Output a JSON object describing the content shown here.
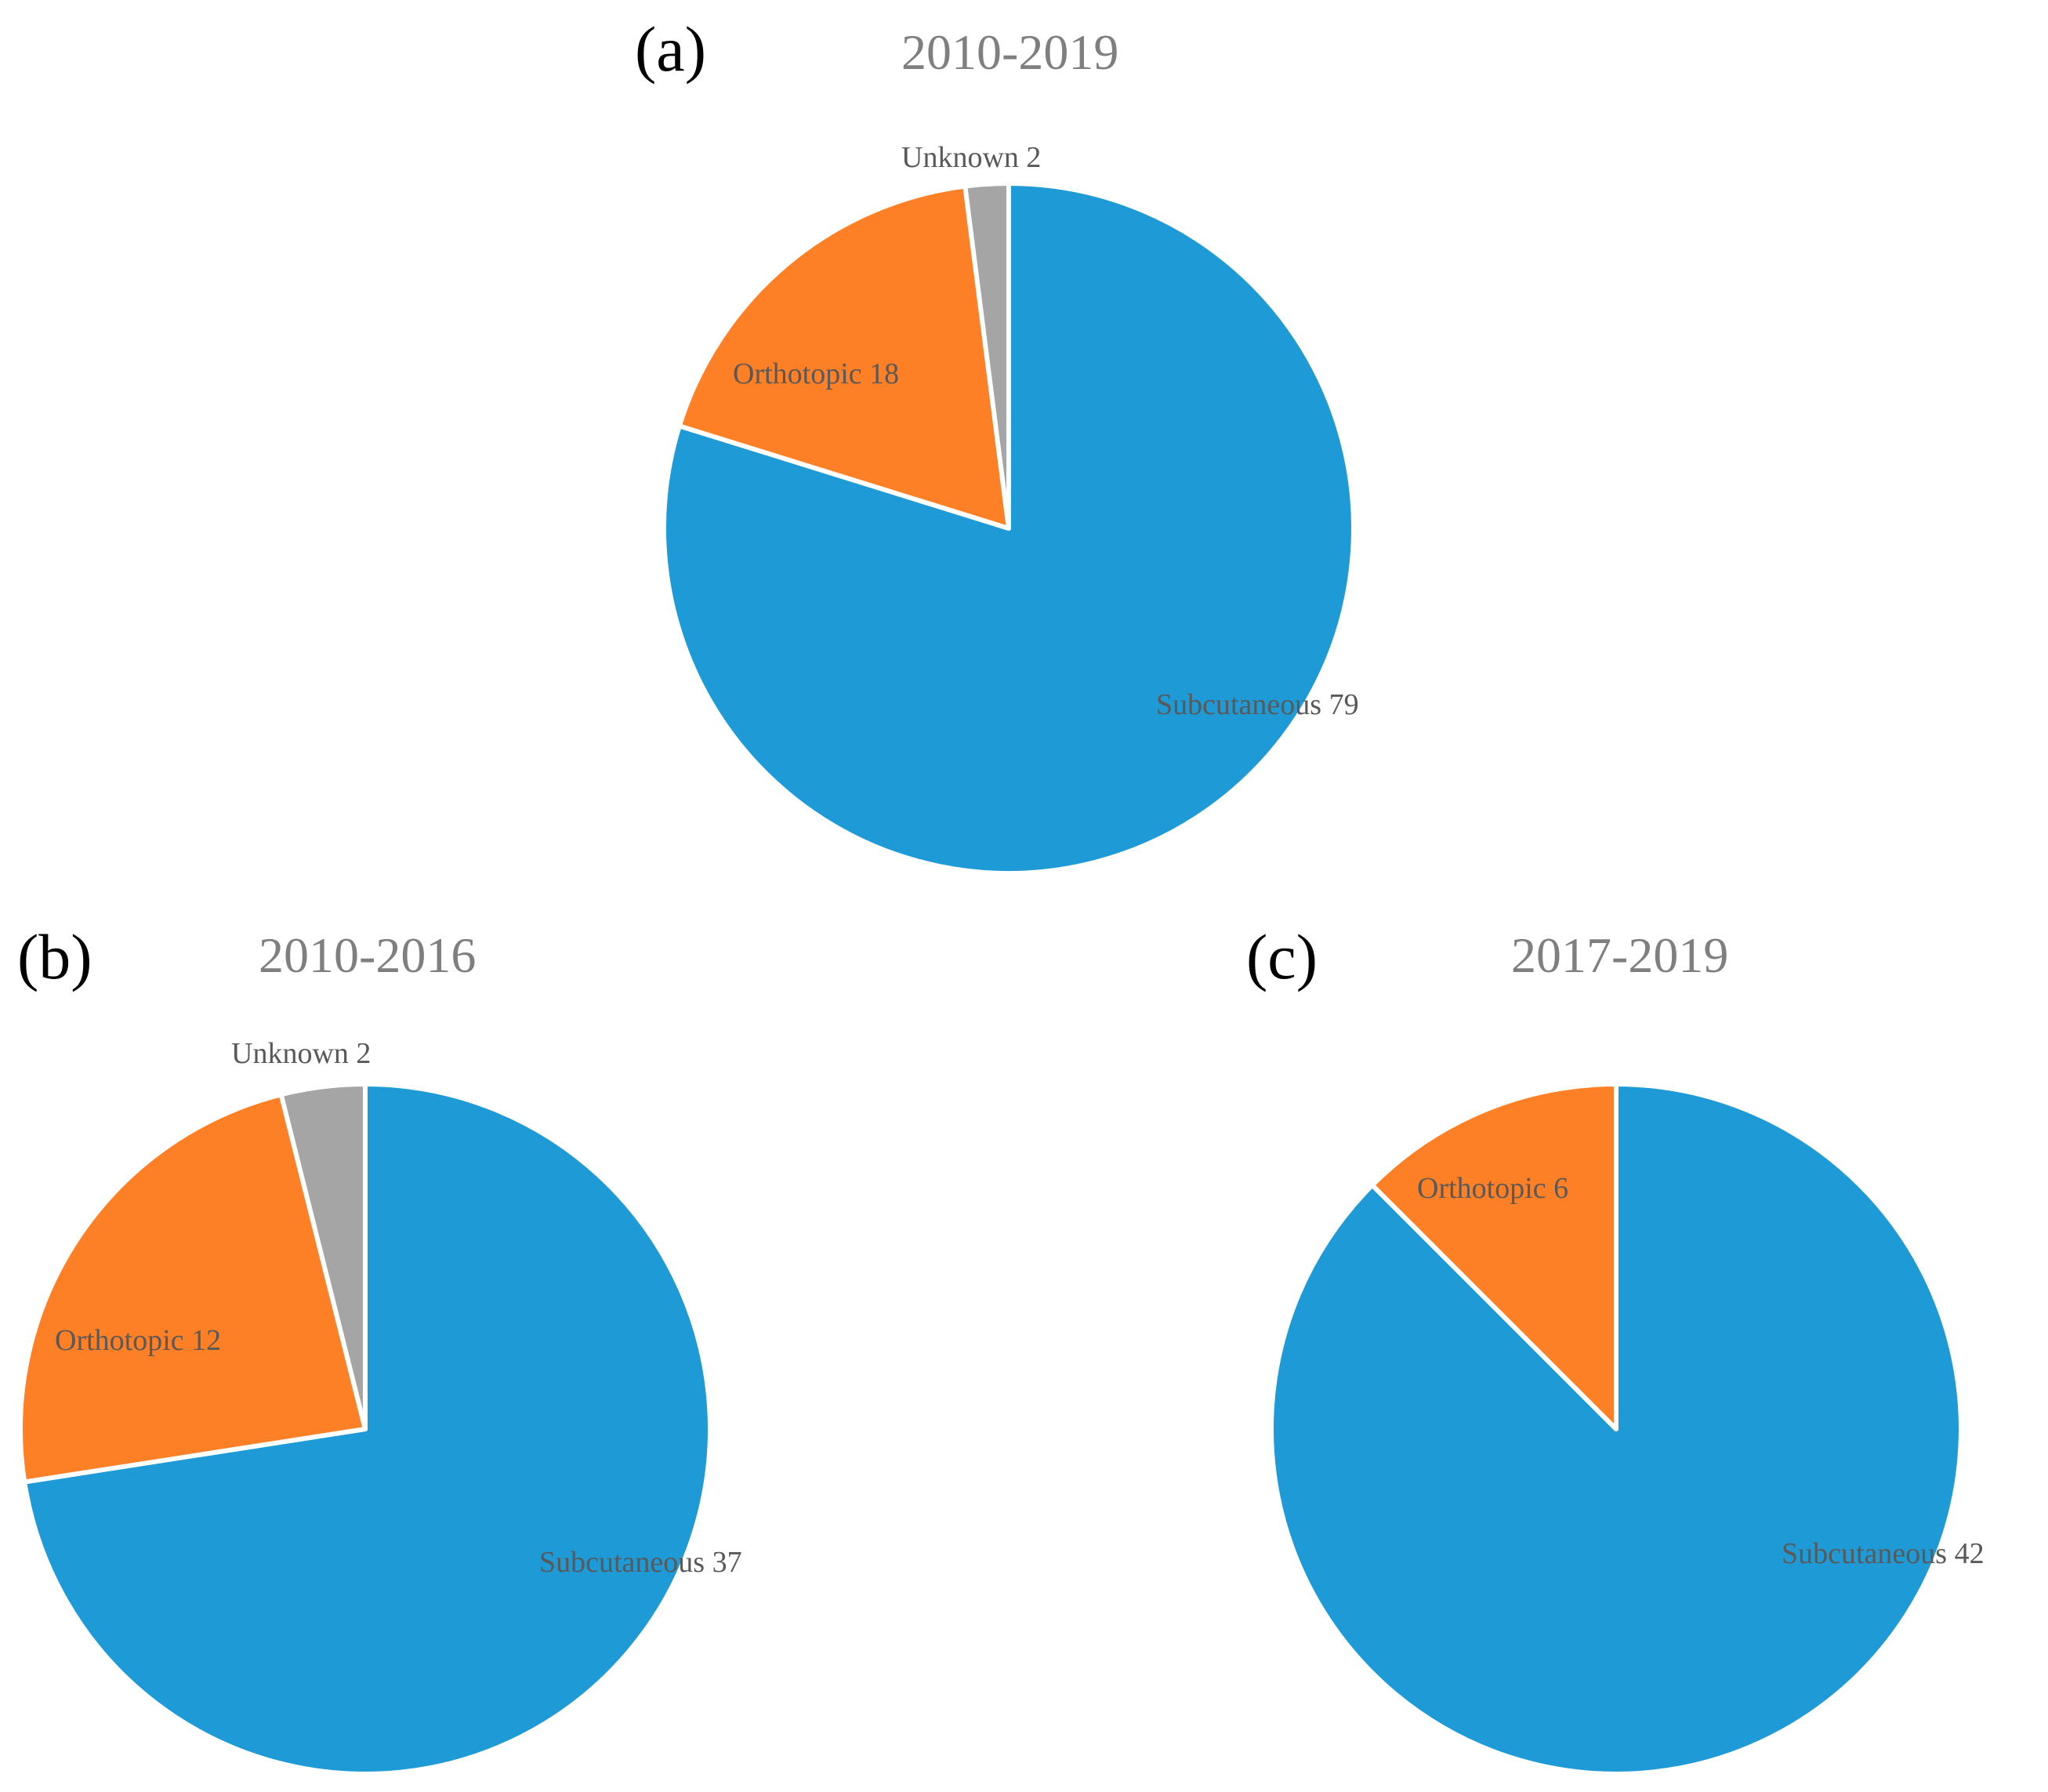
{
  "colors": {
    "Subcutaneous": "#1e9bd7",
    "Orthotopic": "#fd7f26",
    "Unknown": "#a5a5a5"
  },
  "chart_data": [
    {
      "type": "pie",
      "panel": "(a)",
      "title": "2010-2019",
      "slices": [
        {
          "name": "Subcutaneous",
          "value": 79,
          "label": "Subcutaneous 79"
        },
        {
          "name": "Orthotopic",
          "value": 18,
          "label": "Orthotopic 18"
        },
        {
          "name": "Unknown",
          "value": 2,
          "label": "Unknown 2"
        }
      ]
    },
    {
      "type": "pie",
      "panel": "(b)",
      "title": "2010-2016",
      "slices": [
        {
          "name": "Subcutaneous",
          "value": 37,
          "label": "Subcutaneous 37"
        },
        {
          "name": "Orthotopic",
          "value": 12,
          "label": "Orthotopic 12"
        },
        {
          "name": "Unknown",
          "value": 2,
          "label": "Unknown 2"
        }
      ]
    },
    {
      "type": "pie",
      "panel": "(c)",
      "title": "2017-2019",
      "slices": [
        {
          "name": "Subcutaneous",
          "value": 42,
          "label": "Subcutaneous 42"
        },
        {
          "name": "Orthotopic",
          "value": 6,
          "label": "Orthotopic 6"
        }
      ]
    }
  ]
}
